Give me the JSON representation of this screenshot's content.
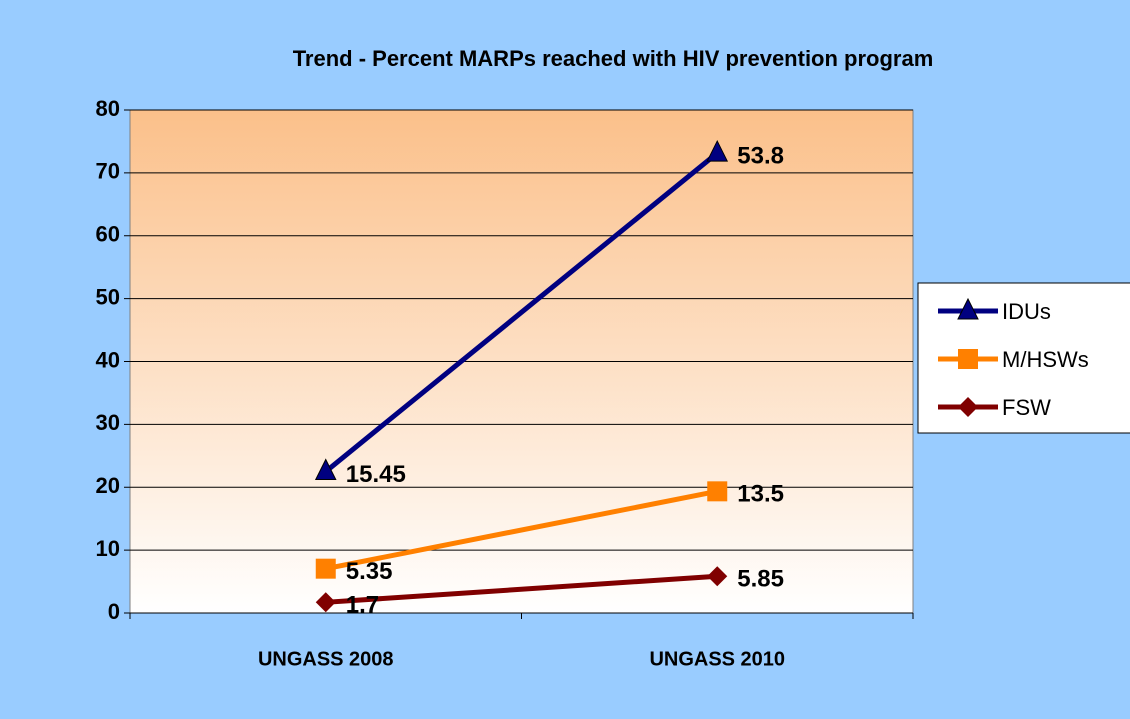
{
  "chart_data": {
    "type": "line",
    "stacked": true,
    "title": "Trend - Percent MARPs reached with HIV prevention program",
    "categories": [
      "UNGASS 2008",
      "UNGASS 2010"
    ],
    "series": [
      {
        "name": "IDUs",
        "color": "#000080",
        "marker": "triangle",
        "values": [
          15.45,
          53.8
        ]
      },
      {
        "name": "M/HSWs",
        "color": "#ff8000",
        "marker": "square",
        "values": [
          5.35,
          13.5
        ]
      },
      {
        "name": "FSW",
        "color": "#800000",
        "marker": "diamond",
        "values": [
          1.7,
          5.85
        ]
      }
    ],
    "ylim": [
      0,
      80
    ],
    "yticks": [
      0,
      10,
      20,
      30,
      40,
      50,
      60,
      70,
      80
    ],
    "grid": true,
    "legend": "right"
  }
}
